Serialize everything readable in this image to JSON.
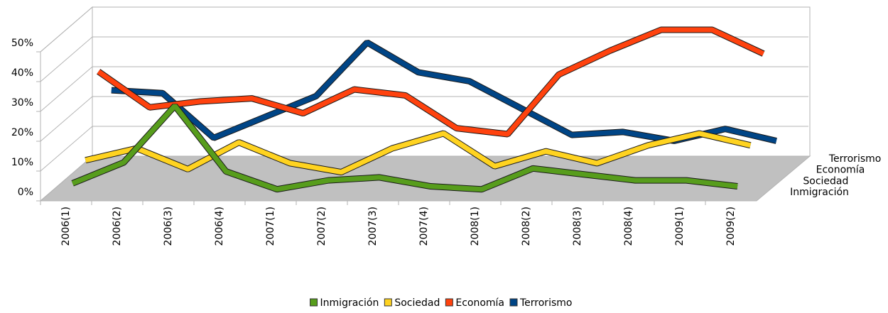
{
  "chart_data": {
    "type": "line3d",
    "categories": [
      "2006(1)",
      "2006(2)",
      "2006(3)",
      "2006(4)",
      "2007(1)",
      "2007(2)",
      "2007(3)",
      "2007(4)",
      "2008(1)",
      "2008(2)",
      "2008(3)",
      "2008(4)",
      "2009(1)",
      "2009(2)"
    ],
    "series": [
      {
        "name": "Inmigración",
        "color": "#579d1c",
        "values": [
          4,
          11,
          30,
          8,
          2,
          5,
          6,
          3,
          2,
          9,
          7,
          5,
          5,
          3
        ]
      },
      {
        "name": "Sociedad",
        "color": "#ffd320",
        "values": [
          8,
          12,
          5,
          14,
          7,
          4,
          12,
          17,
          6,
          11,
          7,
          13,
          17,
          13
        ]
      },
      {
        "name": "Economía",
        "color": "#ff420e",
        "values": [
          34,
          22,
          24,
          25,
          20,
          28,
          26,
          15,
          13,
          33,
          41,
          48,
          48,
          40
        ]
      },
      {
        "name": "Terrorismo",
        "color": "#004586",
        "values": [
          24,
          23,
          8,
          15,
          22,
          40,
          30,
          27,
          18,
          9,
          10,
          7,
          11,
          7
        ]
      }
    ],
    "ylim": [
      0,
      50
    ],
    "yticks": [
      {
        "value": 0,
        "label": "0%"
      },
      {
        "value": 10,
        "label": "10%"
      },
      {
        "value": 20,
        "label": "20%"
      },
      {
        "value": 30,
        "label": "30%"
      },
      {
        "value": 40,
        "label": "40%"
      },
      {
        "value": 50,
        "label": "50%"
      }
    ],
    "grid": true,
    "legend": "bottom"
  }
}
